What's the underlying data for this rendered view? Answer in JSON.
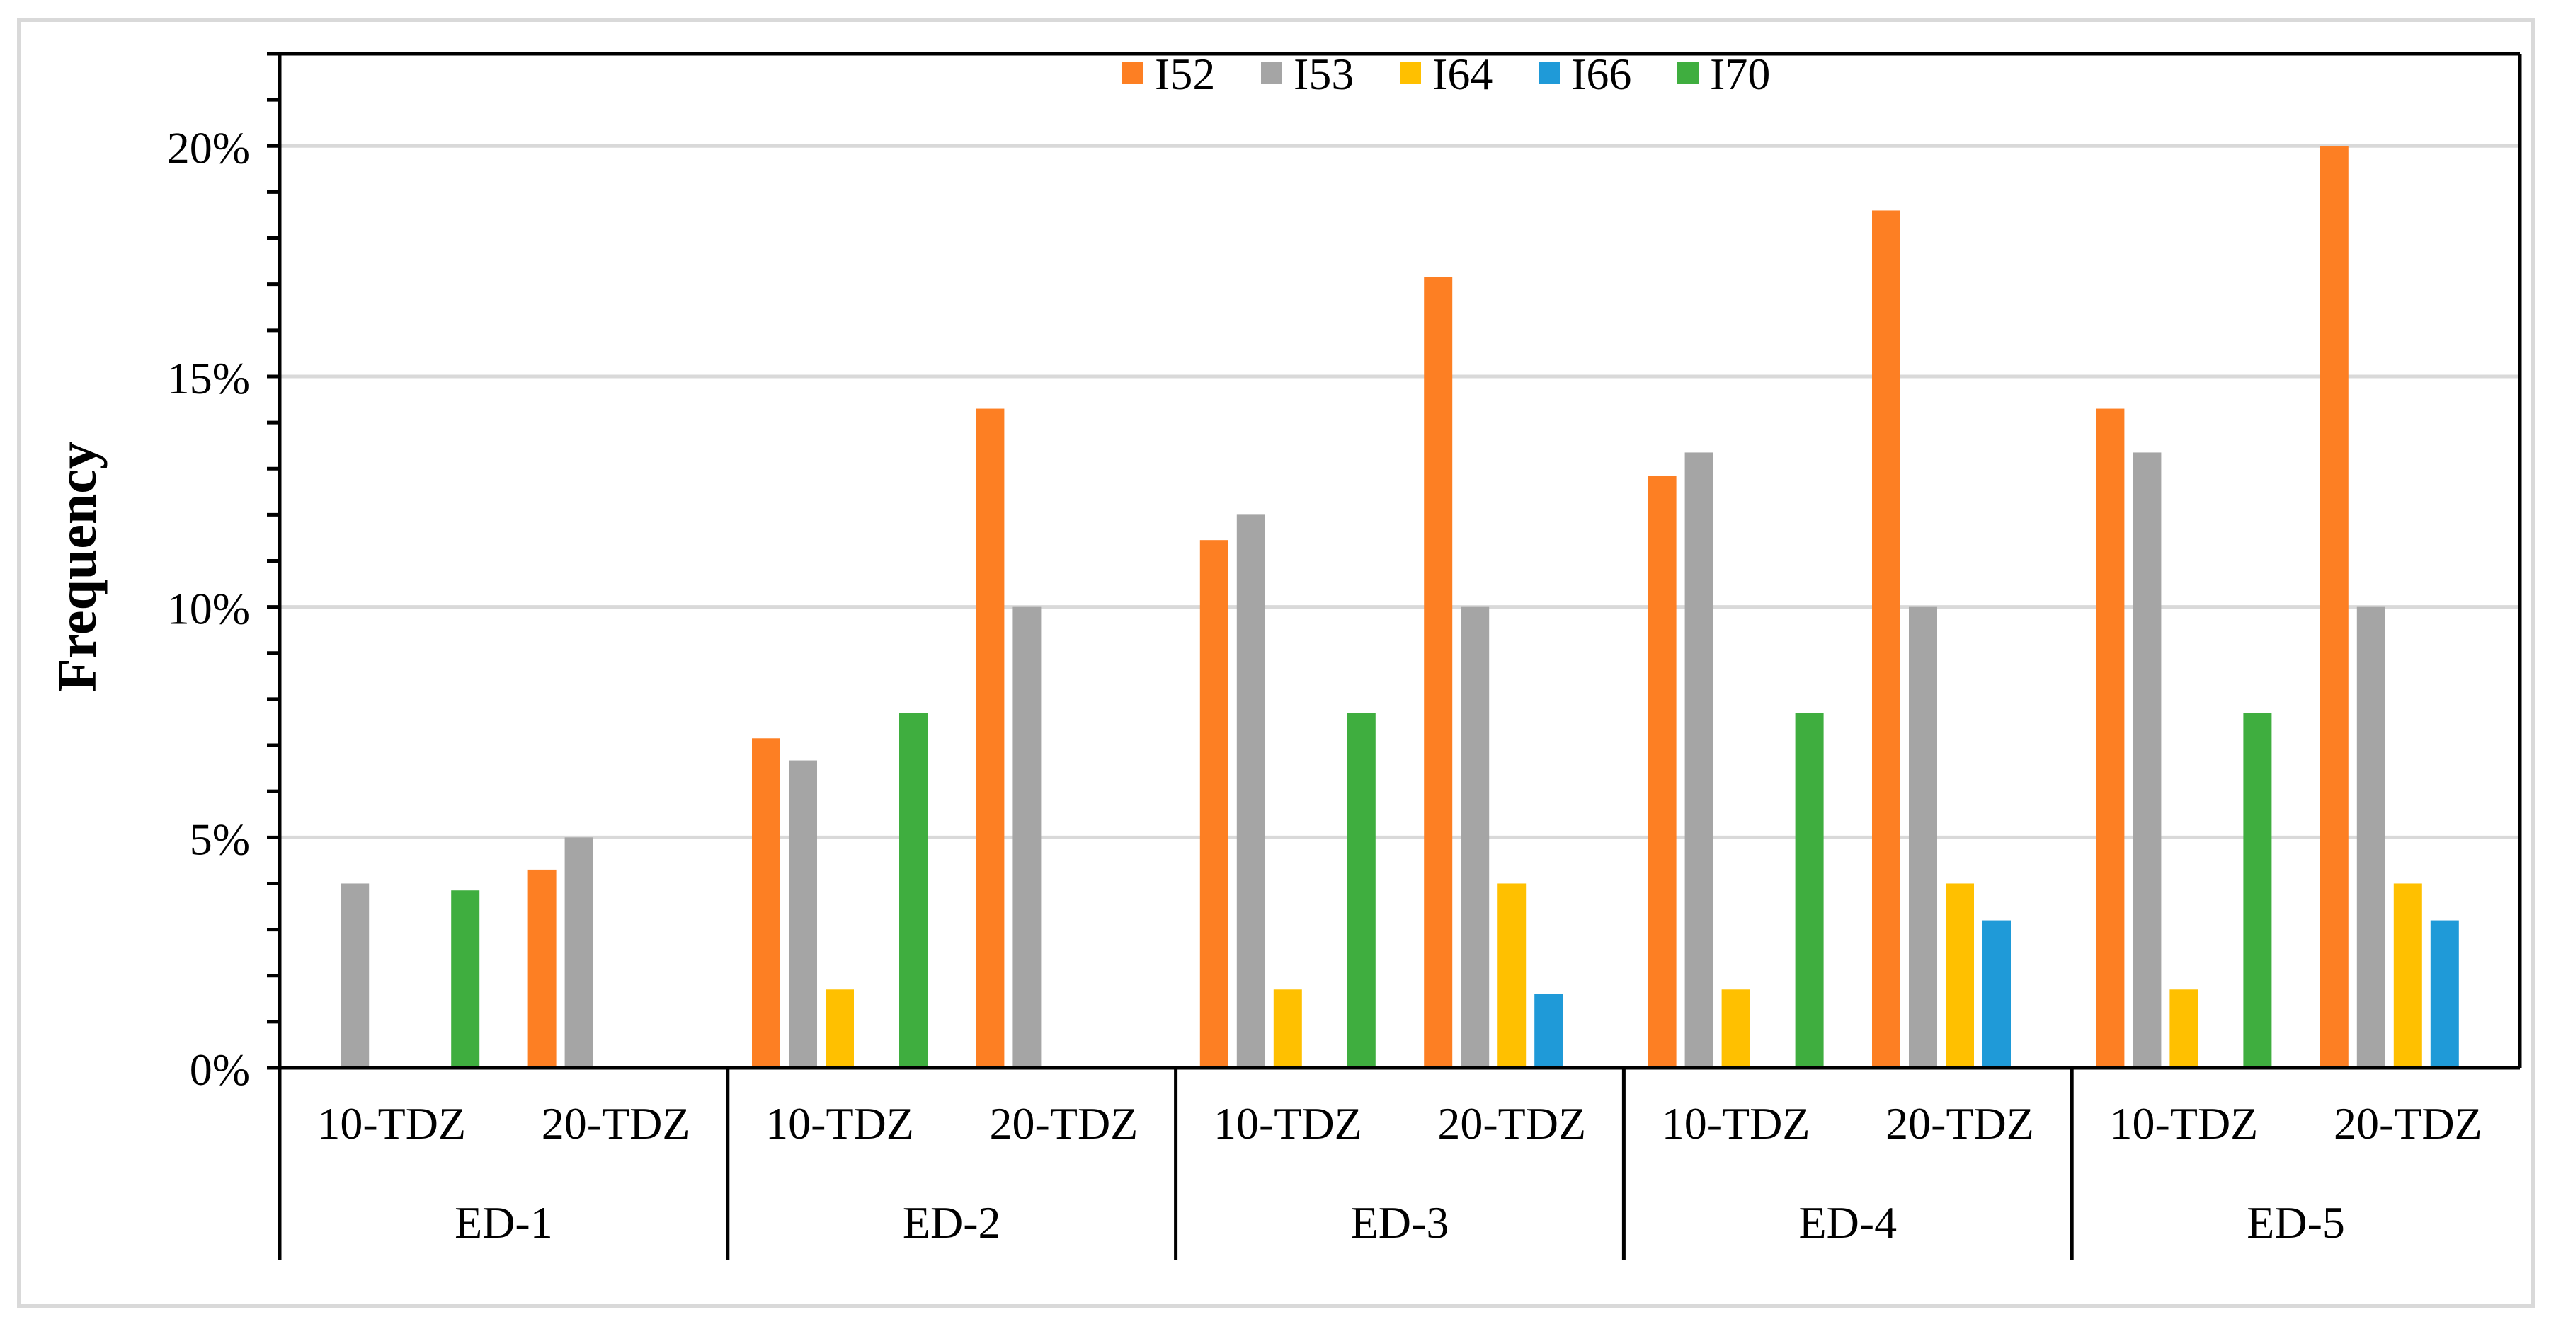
{
  "chart_data": {
    "type": "bar",
    "title": "",
    "xlabel": "",
    "ylabel": "Frequency",
    "ylim": [
      0,
      0.22
    ],
    "yticks": [
      0,
      0.05,
      0.1,
      0.15,
      0.2
    ],
    "ytick_labels": [
      "0%",
      "5%",
      "10%",
      "15%",
      "20%"
    ],
    "grid": true,
    "legend_position": "top-center",
    "groups": [
      "ED-1",
      "ED-2",
      "ED-3",
      "ED-4",
      "ED-5"
    ],
    "subgroups": [
      "10-TDZ",
      "20-TDZ"
    ],
    "categories": [
      "ED-1 10-TDZ",
      "ED-1 20-TDZ",
      "ED-2 10-TDZ",
      "ED-2 20-TDZ",
      "ED-3 10-TDZ",
      "ED-3 20-TDZ",
      "ED-4 10-TDZ",
      "ED-4 20-TDZ",
      "ED-5 10-TDZ",
      "ED-5 20-TDZ"
    ],
    "series": [
      {
        "name": "I52",
        "color": "#fd7f23",
        "values": [
          0,
          0.043,
          0.0715,
          0.143,
          0.1145,
          0.1715,
          0.1285,
          0.186,
          0.143,
          0.2
        ]
      },
      {
        "name": "I53",
        "color": "#a5a5a5",
        "values": [
          0.04,
          0.05,
          0.0667,
          0.1,
          0.12,
          0.1,
          0.1335,
          0.1,
          0.1335,
          0.1
        ]
      },
      {
        "name": "I64",
        "color": "#ffc000",
        "values": [
          0,
          0,
          0.017,
          0,
          0.017,
          0.04,
          0.017,
          0.04,
          0.017,
          0.04
        ]
      },
      {
        "name": "I66",
        "color": "#1f9ad8",
        "values": [
          0,
          0,
          0,
          0,
          0,
          0.016,
          0,
          0.032,
          0,
          0.032
        ]
      },
      {
        "name": "I70",
        "color": "#3fae3f",
        "values": [
          0.0385,
          0,
          0.077,
          0,
          0.077,
          0,
          0.077,
          0,
          0.077,
          0
        ]
      }
    ]
  }
}
